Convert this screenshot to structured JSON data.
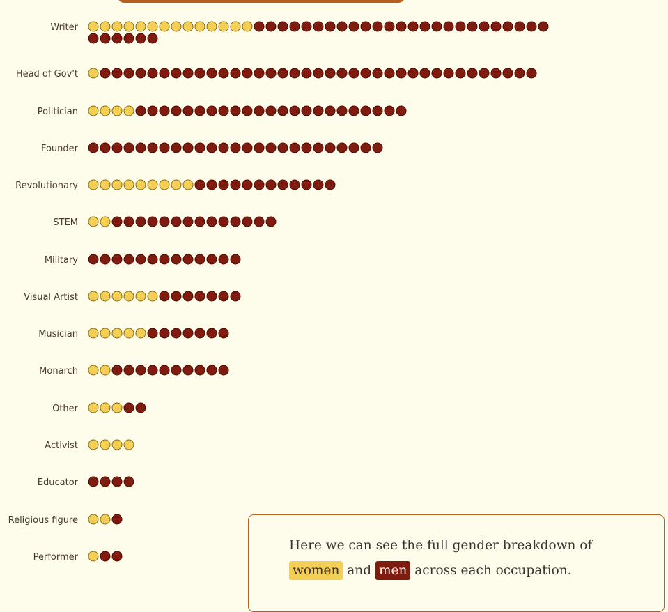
{
  "colors": {
    "background": "#fefdeb",
    "women": "#f3cf55",
    "men": "#801b0f",
    "accent": "#b3621e"
  },
  "callout": {
    "text_before": "Here we can see the full gender breakdown of",
    "women_label": "women",
    "connector": "and",
    "men_label": "men",
    "text_after": "across each occupation."
  },
  "chart_data": {
    "type": "dot-matrix",
    "unit": "one dot per person",
    "series": [
      {
        "name": "women",
        "color": "#f3cf55"
      },
      {
        "name": "men",
        "color": "#801b0f"
      }
    ],
    "categories": [
      "Writer",
      "Head of Gov't",
      "Politician",
      "Founder",
      "Revolutionary",
      "STEM",
      "Military",
      "Visual Artist",
      "Musician",
      "Monarch",
      "Other",
      "Activist",
      "Educator",
      "Religious figure",
      "Performer"
    ],
    "women": [
      14,
      1,
      4,
      0,
      9,
      2,
      0,
      6,
      5,
      2,
      3,
      4,
      0,
      2,
      1
    ],
    "men": [
      31,
      37,
      23,
      25,
      12,
      14,
      13,
      7,
      7,
      10,
      2,
      0,
      4,
      1,
      2
    ]
  }
}
